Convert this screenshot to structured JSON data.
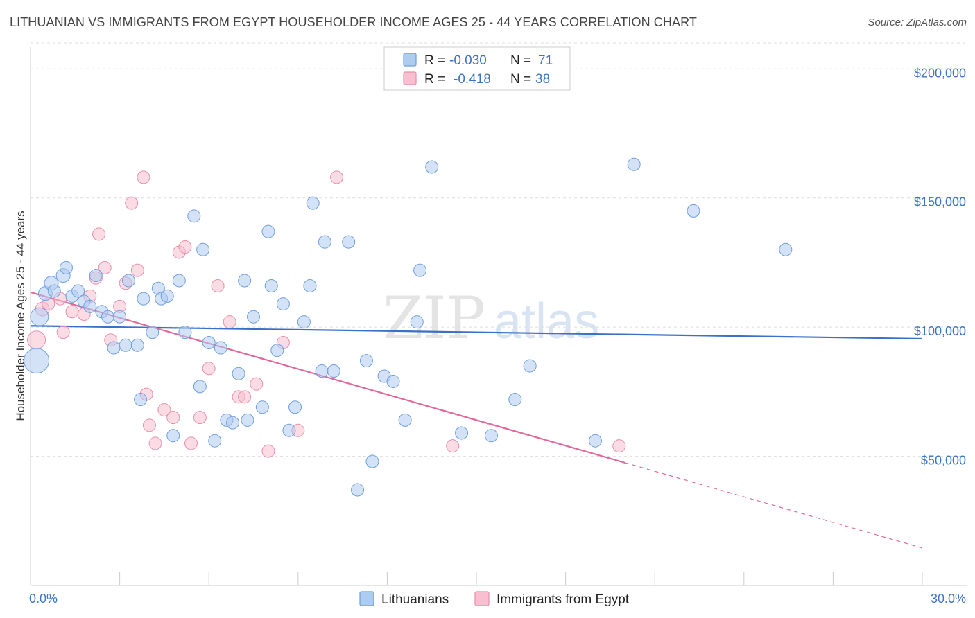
{
  "header": {
    "title": "LITHUANIAN VS IMMIGRANTS FROM EGYPT HOUSEHOLDER INCOME AGES 25 - 44 YEARS CORRELATION CHART",
    "source": "Source: ZipAtlas.com"
  },
  "watermark": {
    "zip": "ZIP",
    "atlas": "atlas"
  },
  "legend": {
    "row1": {
      "r_label": "R =",
      "r_value": "-0.030",
      "n_label": "N =",
      "n_value": "71"
    },
    "row2": {
      "r_label": "R =",
      "r_value": "-0.418",
      "n_label": "N =",
      "n_value": "38"
    }
  },
  "colors": {
    "lithuanians_fill": "#aecbf0",
    "lithuanians_stroke": "#6f9fdc",
    "lithuanians_line": "#3a70c7",
    "egypt_fill": "#f7bfd0",
    "egypt_stroke": "#e98fac",
    "egypt_line": "#e0689a",
    "axis_text": "#3d74c4",
    "grid": "#dddddd"
  },
  "chart_data": {
    "type": "scatter",
    "title": "LITHUANIAN VS IMMIGRANTS FROM EGYPT HOUSEHOLDER INCOME AGES 25 - 44 YEARS CORRELATION CHART",
    "xlabel": "",
    "ylabel": "Householder Income Ages 25 - 44 years",
    "xlim": [
      0,
      30
    ],
    "ylim": [
      0,
      210000
    ],
    "x_tick_labels": [
      "0.0%",
      "30.0%"
    ],
    "y_ticks": [
      50000,
      100000,
      150000,
      200000
    ],
    "y_tick_labels": [
      "$50,000",
      "$100,000",
      "$150,000",
      "$200,000"
    ],
    "grid": true,
    "legend_position": "bottom",
    "series": [
      {
        "name": "Lithuanians",
        "r": -0.03,
        "n": 71,
        "trend": {
          "x": [
            0,
            30
          ],
          "y": [
            100500,
            95500
          ]
        },
        "points": [
          [
            0.2,
            87000,
            18
          ],
          [
            0.3,
            104000,
            13
          ],
          [
            0.5,
            113000,
            10
          ],
          [
            0.7,
            117000,
            10
          ],
          [
            0.8,
            114000,
            9
          ],
          [
            1.1,
            120000,
            10
          ],
          [
            1.2,
            123000,
            9
          ],
          [
            1.4,
            112000,
            9
          ],
          [
            1.6,
            114000,
            9
          ],
          [
            1.8,
            110000,
            9
          ],
          [
            2.0,
            108000,
            9
          ],
          [
            2.2,
            120000,
            9
          ],
          [
            2.4,
            106000,
            9
          ],
          [
            2.6,
            104000,
            9
          ],
          [
            2.8,
            92000,
            9
          ],
          [
            3.0,
            104000,
            9
          ],
          [
            3.2,
            93000,
            9
          ],
          [
            3.3,
            118000,
            9
          ],
          [
            3.6,
            93000,
            9
          ],
          [
            3.7,
            72000,
            9
          ],
          [
            3.8,
            111000,
            9
          ],
          [
            4.1,
            98000,
            9
          ],
          [
            4.3,
            115000,
            9
          ],
          [
            4.4,
            111000,
            9
          ],
          [
            4.6,
            112000,
            9
          ],
          [
            4.8,
            58000,
            9
          ],
          [
            5.0,
            118000,
            9
          ],
          [
            5.2,
            98000,
            9
          ],
          [
            5.5,
            143000,
            9
          ],
          [
            5.7,
            77000,
            9
          ],
          [
            5.8,
            130000,
            9
          ],
          [
            6.0,
            94000,
            9
          ],
          [
            6.2,
            56000,
            9
          ],
          [
            6.4,
            92000,
            9
          ],
          [
            6.6,
            64000,
            9
          ],
          [
            6.8,
            63000,
            9
          ],
          [
            7.0,
            82000,
            9
          ],
          [
            7.2,
            118000,
            9
          ],
          [
            7.3,
            64000,
            9
          ],
          [
            7.5,
            104000,
            9
          ],
          [
            7.8,
            69000,
            9
          ],
          [
            8.0,
            137000,
            9
          ],
          [
            8.1,
            116000,
            9
          ],
          [
            8.3,
            91000,
            9
          ],
          [
            8.5,
            109000,
            9
          ],
          [
            8.7,
            60000,
            9
          ],
          [
            8.9,
            69000,
            9
          ],
          [
            9.2,
            102000,
            9
          ],
          [
            9.4,
            116000,
            9
          ],
          [
            9.5,
            148000,
            9
          ],
          [
            9.8,
            83000,
            9
          ],
          [
            9.9,
            133000,
            9
          ],
          [
            10.2,
            83000,
            9
          ],
          [
            10.7,
            133000,
            9
          ],
          [
            11.0,
            37000,
            9
          ],
          [
            11.3,
            87000,
            9
          ],
          [
            11.5,
            48000,
            9
          ],
          [
            11.9,
            81000,
            9
          ],
          [
            12.2,
            79000,
            9
          ],
          [
            12.6,
            64000,
            9
          ],
          [
            13.0,
            102000,
            9
          ],
          [
            13.1,
            122000,
            9
          ],
          [
            13.5,
            162000,
            9
          ],
          [
            14.5,
            59000,
            9
          ],
          [
            15.5,
            58000,
            9
          ],
          [
            16.3,
            72000,
            9
          ],
          [
            16.8,
            85000,
            9
          ],
          [
            19.0,
            56000,
            9
          ],
          [
            20.3,
            163000,
            9
          ],
          [
            22.3,
            145000,
            9
          ],
          [
            25.4,
            130000,
            9
          ]
        ]
      },
      {
        "name": "Immigrants from Egypt",
        "r": -0.418,
        "n": 38,
        "trend": {
          "x": [
            0,
            20
          ],
          "y": [
            113500,
            47500
          ]
        },
        "trend_dashed": {
          "x": [
            20,
            30
          ],
          "y": [
            47500,
            14500
          ]
        },
        "points": [
          [
            0.2,
            95000,
            13
          ],
          [
            0.4,
            107000,
            10
          ],
          [
            0.6,
            109000,
            9
          ],
          [
            1.0,
            111000,
            9
          ],
          [
            1.1,
            98000,
            9
          ],
          [
            1.4,
            106000,
            9
          ],
          [
            1.8,
            105000,
            9
          ],
          [
            2.0,
            112000,
            9
          ],
          [
            2.2,
            119000,
            9
          ],
          [
            2.3,
            136000,
            9
          ],
          [
            2.5,
            123000,
            9
          ],
          [
            2.7,
            95000,
            9
          ],
          [
            3.0,
            108000,
            9
          ],
          [
            3.2,
            117000,
            9
          ],
          [
            3.4,
            148000,
            9
          ],
          [
            3.6,
            122000,
            9
          ],
          [
            3.8,
            158000,
            9
          ],
          [
            3.9,
            74000,
            9
          ],
          [
            4.0,
            62000,
            9
          ],
          [
            4.2,
            55000,
            9
          ],
          [
            4.5,
            68000,
            9
          ],
          [
            4.8,
            65000,
            9
          ],
          [
            5.0,
            129000,
            9
          ],
          [
            5.2,
            131000,
            9
          ],
          [
            5.4,
            55000,
            9
          ],
          [
            5.7,
            65000,
            9
          ],
          [
            6.0,
            84000,
            9
          ],
          [
            6.3,
            116000,
            9
          ],
          [
            6.7,
            102000,
            9
          ],
          [
            7.0,
            73000,
            9
          ],
          [
            7.2,
            73000,
            9
          ],
          [
            7.6,
            78000,
            9
          ],
          [
            8.0,
            52000,
            9
          ],
          [
            8.5,
            94000,
            9
          ],
          [
            9.0,
            60000,
            9
          ],
          [
            10.3,
            158000,
            9
          ],
          [
            14.2,
            54000,
            9
          ],
          [
            19.8,
            54000,
            9
          ]
        ]
      }
    ]
  },
  "bottom_legend": {
    "item1": "Lithuanians",
    "item2": "Immigrants from Egypt"
  }
}
